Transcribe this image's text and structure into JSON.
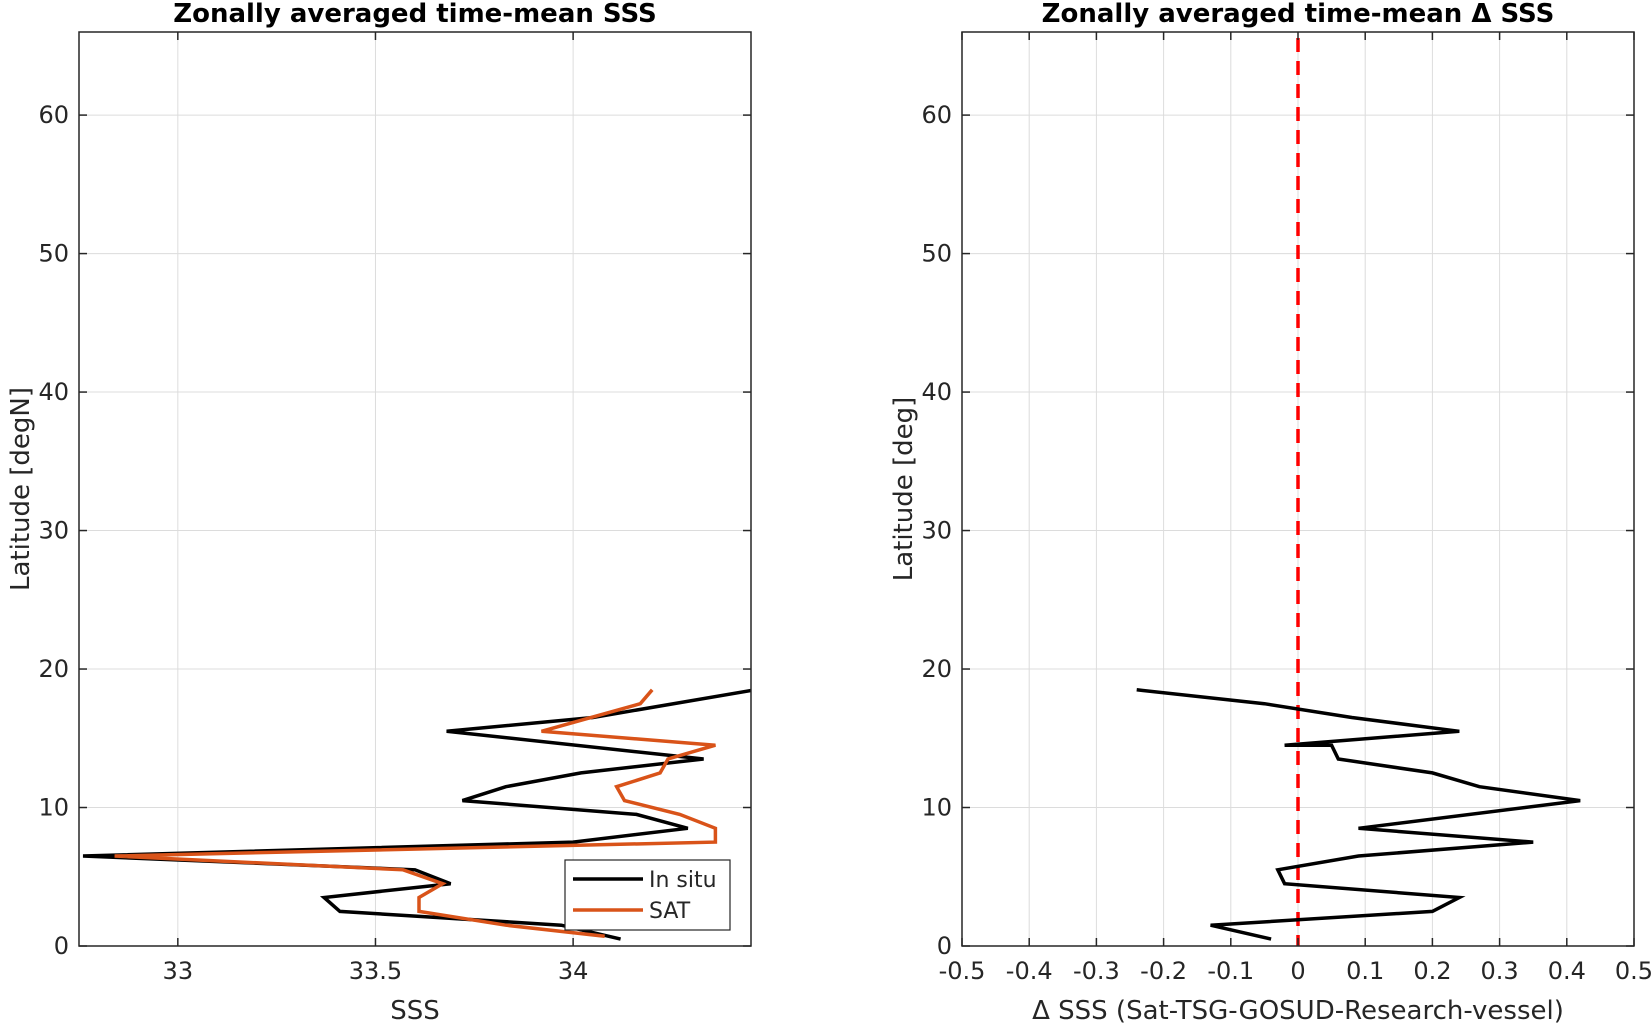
{
  "chart_data": [
    {
      "type": "line",
      "title": "Zonally averaged time-mean SSS",
      "xlabel": "SSS",
      "ylabel": "Latitude [degN]",
      "xlim": [
        32.75,
        34.45
      ],
      "ylim": [
        0,
        66
      ],
      "xticks": [
        33,
        33.5,
        34
      ],
      "xtick_labels": [
        "33",
        "33.5",
        "34"
      ],
      "yticks": [
        0,
        10,
        20,
        30,
        40,
        50,
        60
      ],
      "ytick_labels": [
        "0",
        "10",
        "20",
        "30",
        "40",
        "50",
        "60"
      ],
      "grid": true,
      "legend": {
        "placement": "bottom-right",
        "entries": [
          "In situ",
          "SAT"
        ]
      },
      "series": [
        {
          "name": "In situ",
          "color": "#000000",
          "x": [
            34.12,
            33.97,
            33.41,
            33.37,
            33.69,
            33.6,
            32.76,
            34.0,
            34.29,
            34.16,
            33.72,
            33.83,
            34.02,
            34.33,
            33.68,
            34.05,
            34.46
          ],
          "y": [
            0.5,
            1.5,
            2.5,
            3.5,
            4.5,
            5.5,
            6.5,
            7.5,
            8.5,
            9.5,
            10.5,
            11.5,
            12.5,
            13.5,
            15.5,
            16.5,
            18.5
          ]
        },
        {
          "name": "SAT",
          "color": "#d95319",
          "x": [
            34.08,
            33.83,
            33.61,
            33.61,
            33.67,
            33.57,
            32.84,
            34.36,
            34.36,
            34.27,
            34.13,
            34.11,
            34.22,
            34.24,
            34.36,
            33.92,
            34.17,
            34.2
          ],
          "y": [
            0.7,
            1.5,
            2.5,
            3.5,
            4.5,
            5.5,
            6.5,
            7.5,
            8.5,
            9.5,
            10.5,
            11.5,
            12.5,
            13.5,
            14.5,
            15.5,
            17.5,
            18.5
          ]
        }
      ]
    },
    {
      "type": "line",
      "title": "Zonally averaged time-mean Δ SSS",
      "xlabel": "Δ SSS (Sat-TSG-GOSUD-Research-vessel)",
      "ylabel": "Latitude [deg]",
      "xlim": [
        -0.5,
        0.5
      ],
      "ylim": [
        0,
        66
      ],
      "xticks": [
        -0.5,
        -0.4,
        -0.3,
        -0.2,
        -0.1,
        0,
        0.1,
        0.2,
        0.3,
        0.4,
        0.5
      ],
      "xtick_labels": [
        "-0.5",
        "-0.4",
        "-0.3",
        "-0.2",
        "-0.1",
        "0",
        "0.1",
        "0.2",
        "0.3",
        "0.4",
        "0.5"
      ],
      "yticks": [
        0,
        10,
        20,
        30,
        40,
        50,
        60
      ],
      "ytick_labels": [
        "0",
        "10",
        "20",
        "30",
        "40",
        "50",
        "60"
      ],
      "grid": true,
      "reference_line": {
        "x": 0,
        "color": "#ff0000",
        "style": "dashed"
      },
      "series": [
        {
          "color": "#000000",
          "x": [
            -0.04,
            -0.13,
            0.2,
            0.24,
            -0.02,
            -0.03,
            0.09,
            0.35,
            0.09,
            0.42,
            0.27,
            0.2,
            0.06,
            0.05,
            -0.02,
            0.24,
            0.08,
            -0.05,
            -0.24
          ],
          "y": [
            0.5,
            1.5,
            2.5,
            3.5,
            4.5,
            5.5,
            6.5,
            7.5,
            8.5,
            10.5,
            11.5,
            12.5,
            13.5,
            14.5,
            14.5,
            15.5,
            16.5,
            17.5,
            18.5
          ]
        }
      ]
    }
  ]
}
